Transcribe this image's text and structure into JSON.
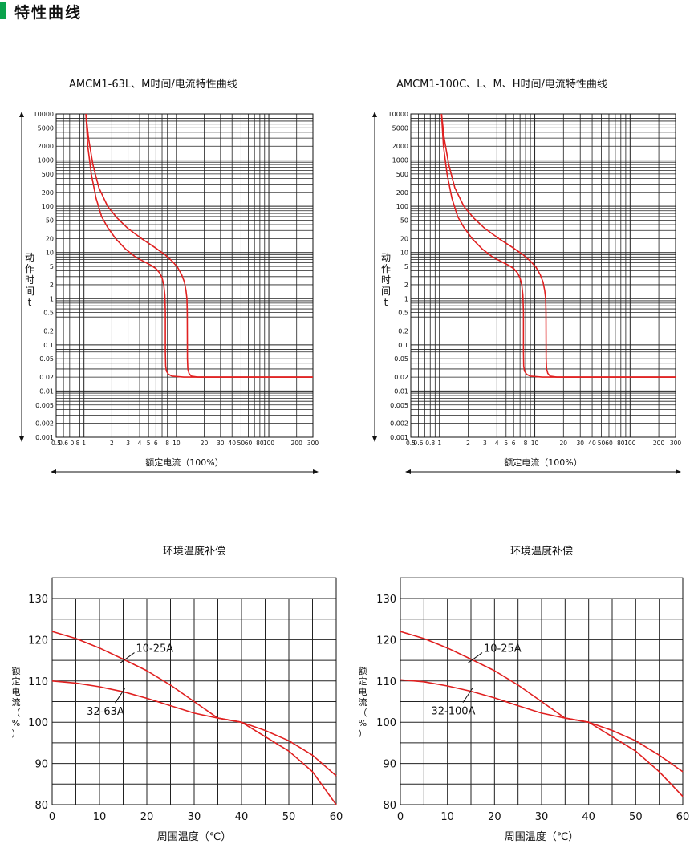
{
  "header": {
    "title": "特性曲线",
    "accent": "#0aa24c"
  },
  "curve_color": "#e02020",
  "chart_data": [
    {
      "type": "line",
      "title": "AMCM1-63L、M时间/电流特性曲线",
      "xlabel": "额定电流（100%）",
      "ylabel": "动作时间t",
      "x_scale": "log",
      "y_scale": "log",
      "xlim": [
        0.5,
        300
      ],
      "ylim": [
        0.001,
        10000
      ],
      "x_ticks": [
        "0.5",
        "0.6",
        "0.8",
        "1",
        "2",
        "3",
        "4",
        "5",
        "6",
        "8",
        "10",
        "20",
        "30",
        "40",
        "50",
        "60",
        "80",
        "100",
        "200",
        "300"
      ],
      "y_ticks": [
        "10000",
        "5000",
        "2000",
        "1000",
        "500",
        "200",
        "100",
        "50",
        "20",
        "10",
        "5",
        "2",
        "1",
        "0.5",
        "0.2",
        "0.1",
        "0.05",
        "0.02",
        "0.01",
        "0.005",
        "0.002",
        "0.001"
      ],
      "grid": true,
      "series": [
        {
          "x": [
            1.05,
            1.1,
            1.2,
            1.35,
            1.55,
            1.8,
            2.2,
            2.8,
            3.6,
            4.5,
            5.3,
            6.0,
            6.6,
            7.0,
            7.3,
            7.5,
            7.6,
            7.6,
            7.65,
            7.8,
            8.2,
            9.0,
            12,
            300
          ],
          "y": [
            10000,
            2000,
            500,
            150,
            60,
            35,
            20,
            12,
            8,
            6.3,
            5.3,
            4.5,
            3.6,
            2.8,
            2,
            1.2,
            0.5,
            0.07,
            0.035,
            0.027,
            0.023,
            0.021,
            0.02,
            0.02
          ]
        },
        {
          "x": [
            1.05,
            1.12,
            1.25,
            1.45,
            1.8,
            2.3,
            3.0,
            4.2,
            5.8,
            7.5,
            9.0,
            10.3,
            11.4,
            12.2,
            12.7,
            13.0,
            13.1,
            13.15,
            13.3,
            13.7,
            14.5,
            17,
            300
          ],
          "y": [
            10000,
            3000,
            800,
            250,
            100,
            55,
            33,
            20,
            13,
            9,
            6.5,
            4.8,
            3.3,
            2.3,
            1.5,
            1.0,
            0.5,
            0.05,
            0.03,
            0.024,
            0.021,
            0.02,
            0.02
          ]
        }
      ]
    },
    {
      "type": "line",
      "title": "AMCM1-100C、L、M、H时间/电流特性曲线",
      "xlabel": "额定电流（100%）",
      "ylabel": "动作时间t",
      "x_scale": "log",
      "y_scale": "log",
      "xlim": [
        0.5,
        300
      ],
      "ylim": [
        0.001,
        10000
      ],
      "x_ticks": [
        "0.5",
        "0.6",
        "0.8",
        "1",
        "2",
        "3",
        "4",
        "5",
        "6",
        "8",
        "10",
        "20",
        "30",
        "40",
        "50",
        "60",
        "80",
        "100",
        "200",
        "300"
      ],
      "y_ticks": [
        "10000",
        "5000",
        "2000",
        "1000",
        "500",
        "200",
        "100",
        "50",
        "20",
        "10",
        "5",
        "2",
        "1",
        "0.5",
        "0.2",
        "0.1",
        "0.05",
        "0.02",
        "0.01",
        "0.005",
        "0.002",
        "0.001"
      ],
      "grid": true,
      "series": [
        {
          "x": [
            1.05,
            1.1,
            1.2,
            1.35,
            1.55,
            1.8,
            2.2,
            2.8,
            3.6,
            4.5,
            5.3,
            6.0,
            6.6,
            7.0,
            7.3,
            7.5,
            7.6,
            7.6,
            7.65,
            7.8,
            8.2,
            9.0,
            12,
            300
          ],
          "y": [
            10000,
            2000,
            500,
            150,
            60,
            35,
            20,
            12,
            8,
            6.3,
            5.3,
            4.5,
            3.6,
            2.8,
            2,
            1.2,
            0.5,
            0.07,
            0.035,
            0.027,
            0.023,
            0.021,
            0.02,
            0.02
          ]
        },
        {
          "x": [
            1.05,
            1.12,
            1.25,
            1.45,
            1.8,
            2.3,
            3.0,
            4.2,
            5.8,
            7.5,
            9.0,
            10.3,
            11.4,
            12.2,
            12.7,
            13.0,
            13.1,
            13.15,
            13.3,
            13.7,
            14.5,
            17,
            300
          ],
          "y": [
            10000,
            3000,
            800,
            250,
            100,
            55,
            33,
            20,
            13,
            9,
            6.5,
            4.8,
            3.3,
            2.3,
            1.5,
            1.0,
            0.5,
            0.05,
            0.03,
            0.024,
            0.021,
            0.02,
            0.02
          ]
        }
      ]
    },
    {
      "type": "line",
      "title": "环境温度补偿",
      "xlabel": "周围温度（℃）",
      "ylabel": "额定电流（%）",
      "xlim": [
        0,
        60
      ],
      "ylim": [
        80,
        130
      ],
      "x_ticks": [
        "0",
        "10",
        "20",
        "30",
        "40",
        "50",
        "60"
      ],
      "y_ticks": [
        "80",
        "90",
        "100",
        "110",
        "120",
        "130"
      ],
      "grid": true,
      "series": [
        {
          "name": "10-25A",
          "x": [
            0,
            5,
            10,
            15,
            20,
            25,
            30,
            35,
            40,
            45,
            50,
            55,
            60
          ],
          "y": [
            122,
            120.3,
            118,
            115.3,
            112.5,
            109,
            105,
            101,
            100,
            96.5,
            93,
            88,
            80
          ]
        },
        {
          "name": "32-63A",
          "x": [
            0,
            5,
            10,
            15,
            20,
            25,
            30,
            35,
            40,
            45,
            50,
            55,
            60
          ],
          "y": [
            110,
            109.5,
            108.6,
            107.4,
            105.8,
            104,
            102.2,
            101,
            100,
            98,
            95.5,
            92,
            87
          ]
        }
      ]
    },
    {
      "type": "line",
      "title": "环境温度补偿",
      "xlabel": "周围温度（℃）",
      "ylabel": "额定电流（%）",
      "xlim": [
        0,
        60
      ],
      "ylim": [
        80,
        130
      ],
      "x_ticks": [
        "0",
        "10",
        "20",
        "30",
        "40",
        "50",
        "60"
      ],
      "y_ticks": [
        "80",
        "90",
        "100",
        "110",
        "120",
        "130"
      ],
      "grid": true,
      "series": [
        {
          "name": "10-25A",
          "x": [
            0,
            5,
            10,
            15,
            20,
            25,
            30,
            35,
            40,
            45,
            50,
            55,
            60
          ],
          "y": [
            122,
            120.3,
            118,
            115.3,
            112.5,
            109,
            105,
            101,
            100,
            96.5,
            93,
            88,
            82
          ]
        },
        {
          "name": "32-100A",
          "x": [
            0,
            5,
            10,
            15,
            20,
            25,
            30,
            35,
            40,
            45,
            50,
            55,
            60
          ],
          "y": [
            110.3,
            109.8,
            108.8,
            107.5,
            105.9,
            104,
            102.2,
            101,
            100,
            98,
            95.5,
            92,
            88
          ]
        }
      ]
    }
  ]
}
